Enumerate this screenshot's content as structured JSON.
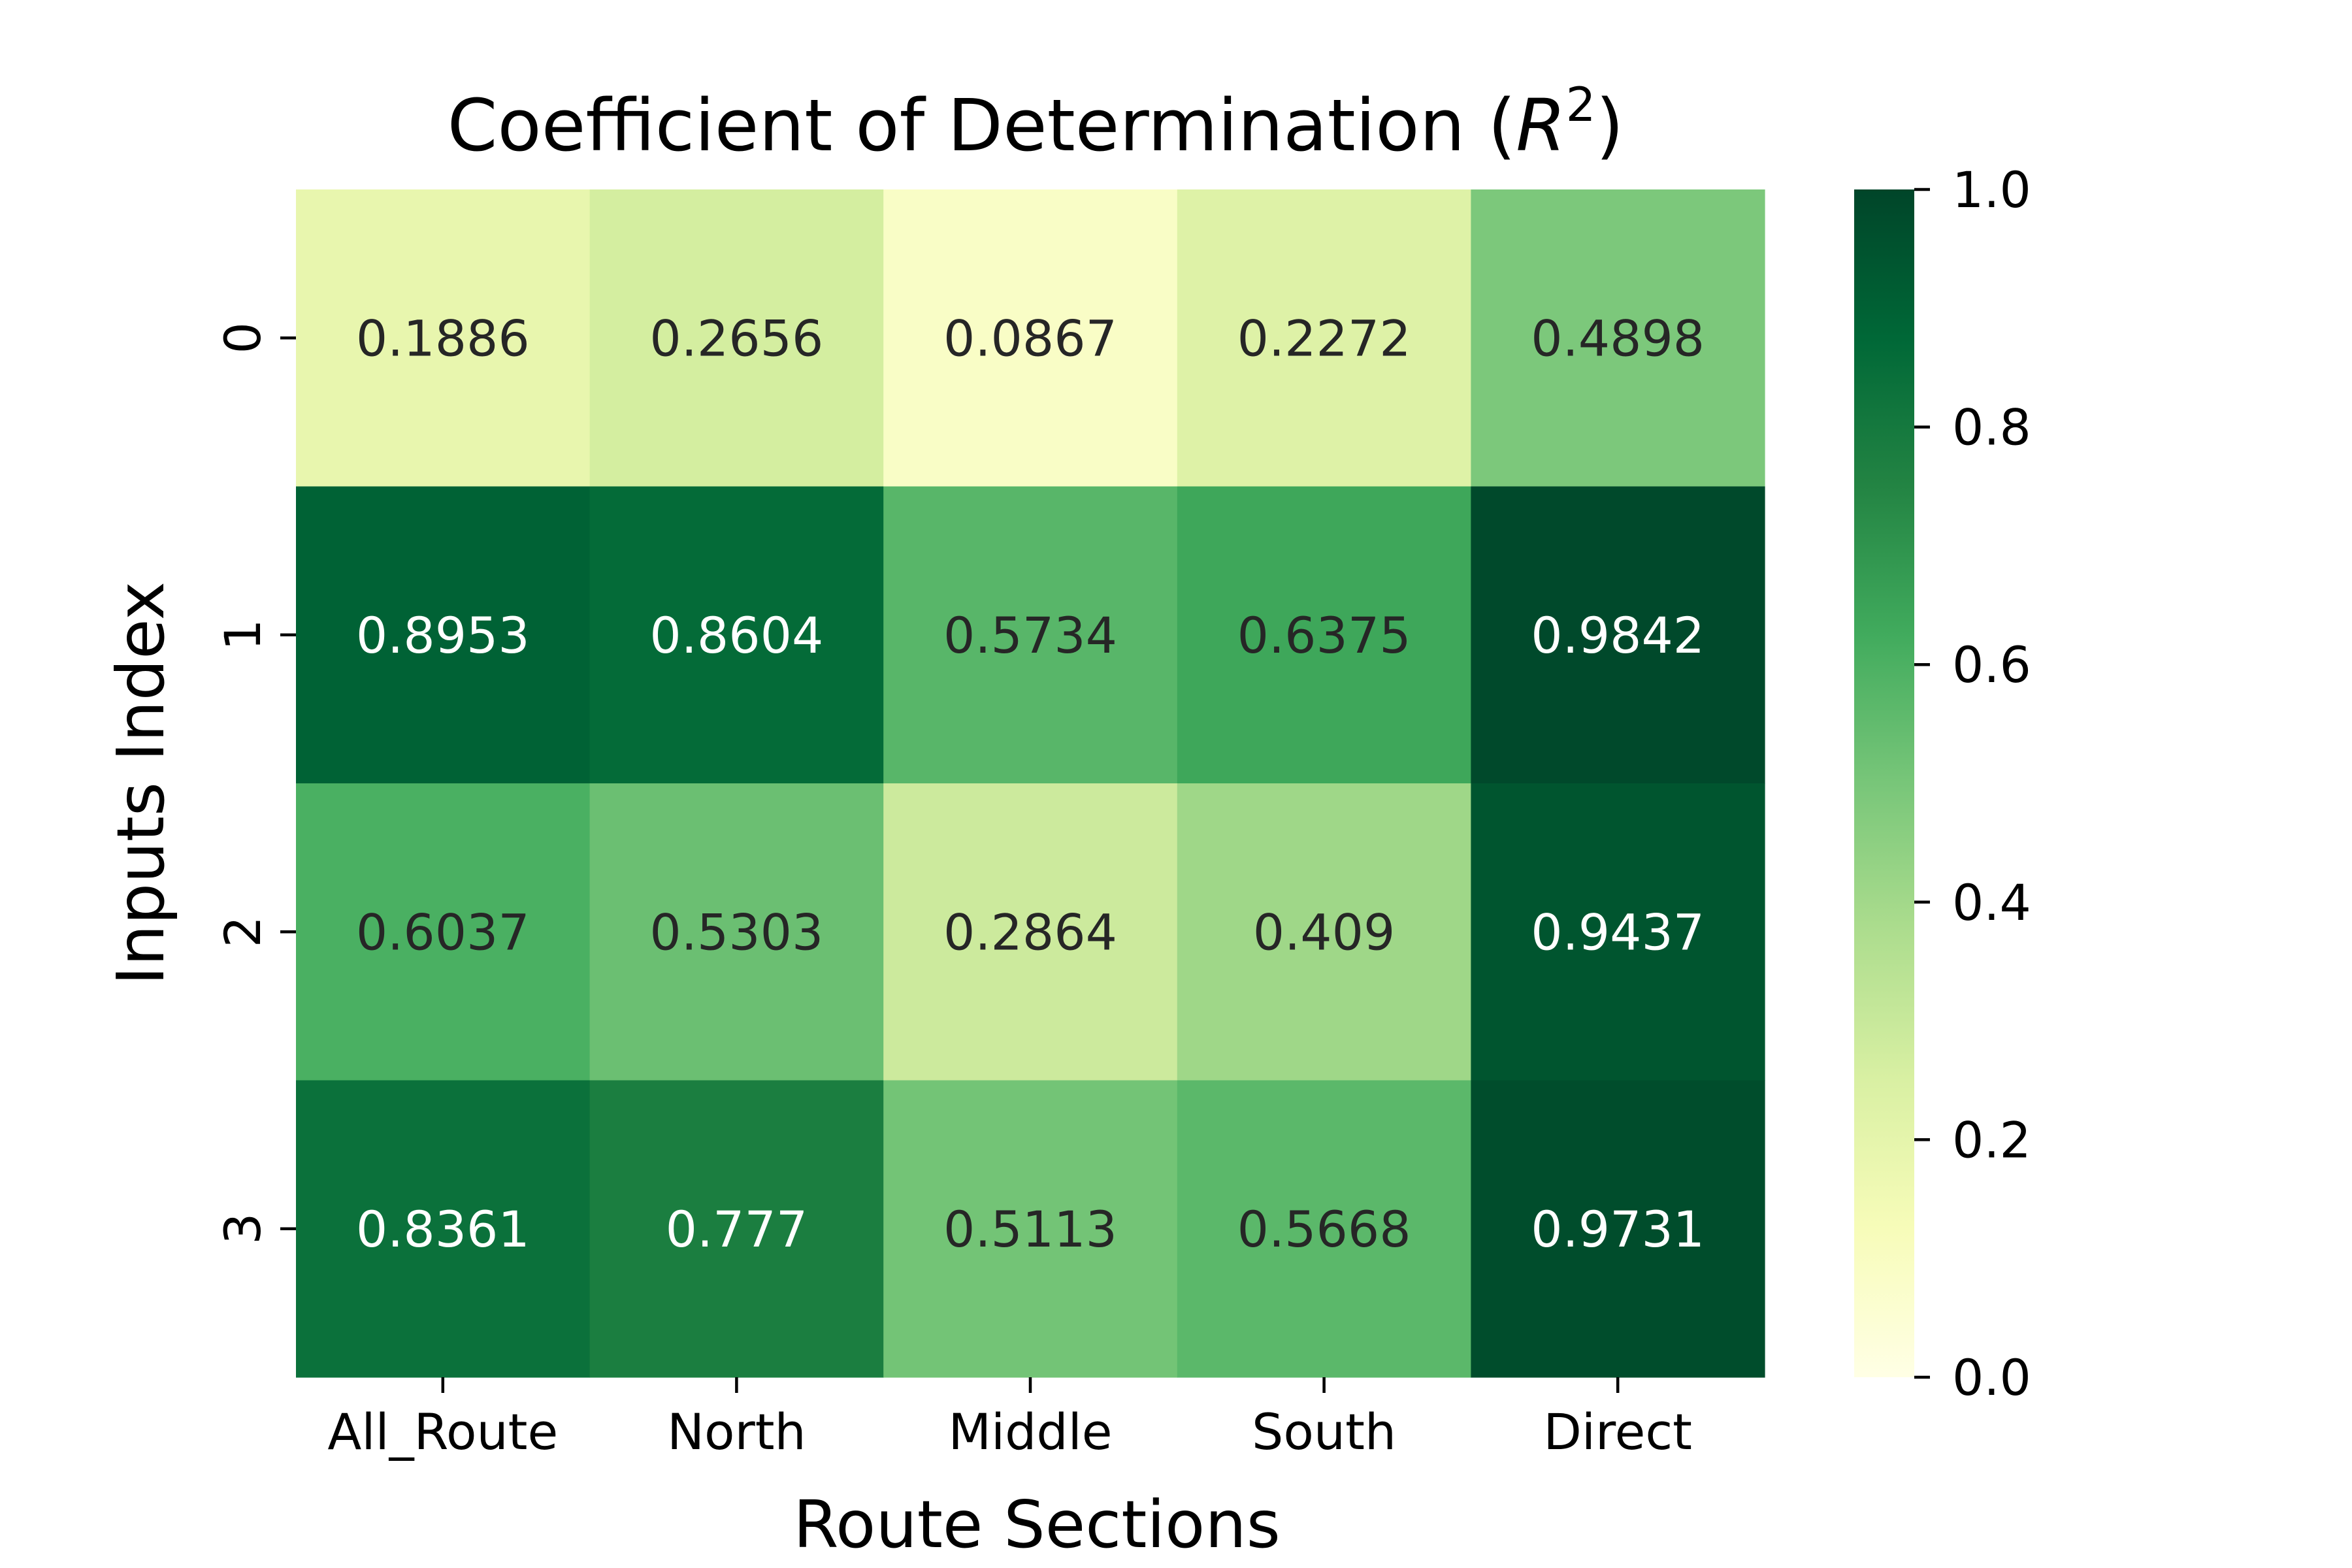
{
  "chart_data": {
    "type": "heatmap",
    "title_prefix": "Coefficient of Determination (",
    "title_symbol": "R",
    "title_superscript": "2",
    "title_suffix": ")",
    "xlabel": "Route Sections",
    "ylabel": "Inputs Index",
    "x_categories": [
      "All_Route",
      "North",
      "Middle",
      "South",
      "Direct"
    ],
    "y_categories": [
      "0",
      "1",
      "2",
      "3"
    ],
    "values": [
      [
        0.1886,
        0.2656,
        0.0867,
        0.2272,
        0.4898
      ],
      [
        0.8953,
        0.8604,
        0.5734,
        0.6375,
        0.9842
      ],
      [
        0.6037,
        0.5303,
        0.2864,
        0.409,
        0.9437
      ],
      [
        0.8361,
        0.777,
        0.5113,
        0.5668,
        0.9731
      ]
    ],
    "value_labels": [
      [
        "0.1886",
        "0.2656",
        "0.0867",
        "0.2272",
        "0.4898"
      ],
      [
        "0.8953",
        "0.8604",
        "0.5734",
        "0.6375",
        "0.9842"
      ],
      [
        "0.6037",
        "0.5303",
        "0.2864",
        "0.409",
        "0.9437"
      ],
      [
        "0.8361",
        "0.777",
        "0.5113",
        "0.5668",
        "0.9731"
      ]
    ],
    "colorbar": {
      "range": [
        0.0,
        1.0
      ],
      "ticks": [
        0.0,
        0.2,
        0.4,
        0.6,
        0.8,
        1.0
      ],
      "tick_labels": [
        "0.0",
        "0.2",
        "0.4",
        "0.6",
        "0.8",
        "1.0"
      ]
    },
    "colormap": "YlGn",
    "colormap_stops": [
      "#ffffe5",
      "#f7fcb9",
      "#d9f0a3",
      "#addd8e",
      "#78c679",
      "#41ab5d",
      "#238443",
      "#006837",
      "#004529"
    ],
    "annotation_colors": {
      "dark_text": "#262626",
      "light_text": "#ffffff"
    }
  }
}
